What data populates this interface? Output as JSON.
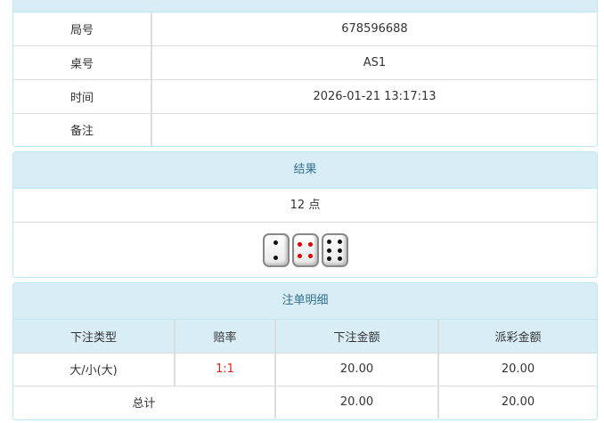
{
  "info": {
    "rows": [
      {
        "label": "局号",
        "value": "678596688"
      },
      {
        "label": "桌号",
        "value": "AS1"
      },
      {
        "label": "时间",
        "value": "2026-01-21 13:17:13"
      },
      {
        "label": "备注",
        "value": ""
      }
    ]
  },
  "result": {
    "title": "结果",
    "points": "12 点",
    "dice": [
      2,
      4,
      6
    ]
  },
  "bets": {
    "title": "注单明细",
    "columns": [
      "下注类型",
      "赔率",
      "下注金额",
      "派彩金额"
    ],
    "rows": [
      {
        "type": "大/小(大)",
        "odds": "1:1",
        "amount": "20.00",
        "payout": "20.00"
      }
    ],
    "total": {
      "label": "总计",
      "amount": "20.00",
      "payout": "20.00"
    }
  },
  "colors": {
    "header_bg": "#d9edf7",
    "header_text": "#31708f",
    "odds": "#d9261c"
  }
}
